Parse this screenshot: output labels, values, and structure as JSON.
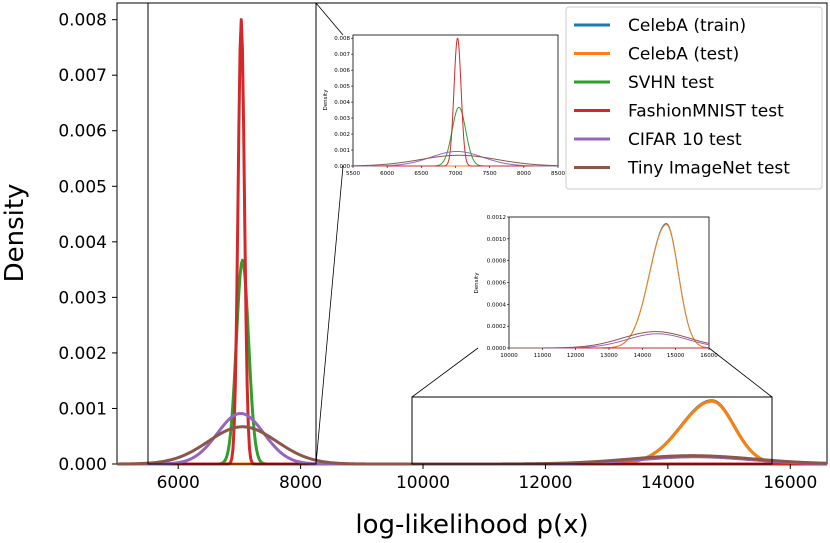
{
  "chart_data": {
    "type": "line",
    "xlabel": "log-likelihood p(x)",
    "ylabel": "Density",
    "xlim": [
      5000,
      16600
    ],
    "ylim": [
      0,
      0.0083
    ],
    "xticks": [
      "6000",
      "8000",
      "10000",
      "12000",
      "14000",
      "16000"
    ],
    "yticks": [
      "0.000",
      "0.001",
      "0.002",
      "0.003",
      "0.004",
      "0.005",
      "0.006",
      "0.007",
      "0.008"
    ],
    "legend_position": "top-right",
    "colors": {
      "CelebA (train)": "#1f77b4",
      "CelebA (test)": "#ff7f0e",
      "SVHN test": "#2ca02c",
      "FashionMNIST test": "#d62728",
      "CIFAR 10 test": "#9467bd",
      "Tiny ImageNet test": "#8c564b"
    },
    "series": [
      {
        "name": "CelebA (train)",
        "peaks": [
          {
            "mean": 14720,
            "sd": 360,
            "height": 0.00114,
            "skew_left_sd": 500
          }
        ]
      },
      {
        "name": "CelebA (test)",
        "peaks": [
          {
            "mean": 14720,
            "sd": 360,
            "height": 0.00113,
            "skew_left_sd": 500
          }
        ]
      },
      {
        "name": "SVHN test",
        "peaks": [
          {
            "mean": 7050,
            "sd": 100,
            "height": 0.00367
          }
        ]
      },
      {
        "name": "FashionMNIST test",
        "peaks": [
          {
            "mean": 7030,
            "sd": 52,
            "height": 0.008
          }
        ]
      },
      {
        "name": "CIFAR 10 test",
        "peaks": [
          {
            "mean": 7020,
            "sd": 380,
            "height": 0.00091
          },
          {
            "mean": 14450,
            "sd": 900,
            "height": 0.00013
          }
        ]
      },
      {
        "name": "Tiny ImageNet test",
        "peaks": [
          {
            "mean": 7050,
            "sd": 560,
            "height": 0.00067
          },
          {
            "mean": 14400,
            "sd": 1000,
            "height": 0.00015
          }
        ]
      }
    ],
    "inset_left": {
      "xlim": [
        5500,
        8500
      ],
      "ylim": [
        0,
        0.0082
      ],
      "xticks": [
        "5500",
        "6000",
        "6500",
        "7000",
        "7500",
        "8000",
        "8500"
      ],
      "yticks": [
        "0.000",
        "0.001",
        "0.002",
        "0.003",
        "0.004",
        "0.005",
        "0.006",
        "0.007",
        "0.008"
      ],
      "ylabel": "Density",
      "source_range": [
        5650,
        8380
      ]
    },
    "inset_right": {
      "xlim": [
        10000,
        16000
      ],
      "ylim": [
        0,
        0.0012
      ],
      "xticks": [
        "10000",
        "11000",
        "12000",
        "13000",
        "14000",
        "15000",
        "16000"
      ],
      "yticks": [
        "0.0000",
        "0.0002",
        "0.0004",
        "0.0006",
        "0.0008",
        "0.0010",
        "0.0012"
      ],
      "ylabel": "Density",
      "source_range": [
        10000,
        16000
      ]
    }
  }
}
